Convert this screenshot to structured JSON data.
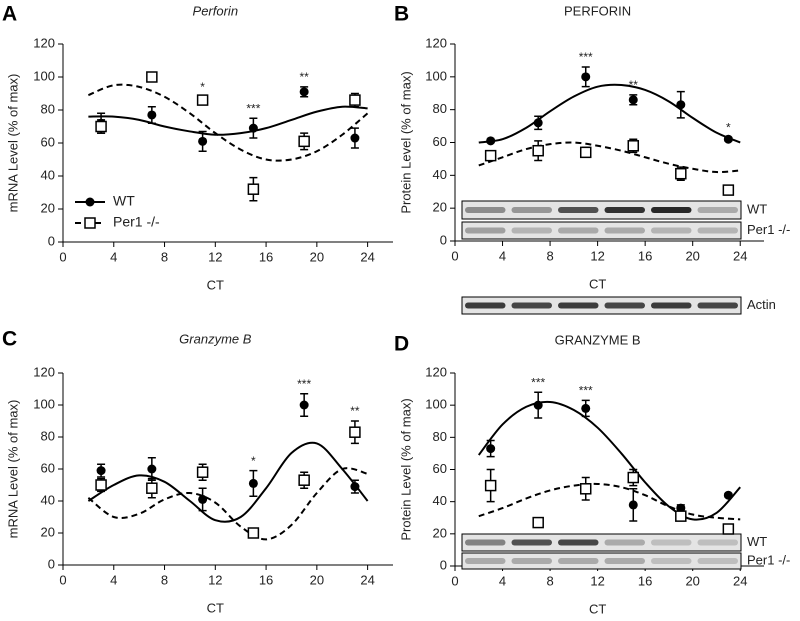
{
  "chart_data": [
    {
      "panel": "A",
      "type": "scatter",
      "title": "Perforin",
      "title_italic": true,
      "ylabel": "mRNA Level (% of max)",
      "xlabel": "CT",
      "x": [
        3,
        7,
        11,
        15,
        19,
        23
      ],
      "xlim": [
        0,
        26
      ],
      "xticks": [
        0,
        4,
        8,
        12,
        16,
        20,
        24
      ],
      "ylim": [
        0,
        120
      ],
      "yticks": [
        0,
        20,
        40,
        60,
        80,
        100,
        120
      ],
      "fit_x": [
        2,
        4,
        6,
        8,
        10,
        12,
        14,
        16,
        18,
        20,
        22,
        24
      ],
      "legend": "lower left",
      "series": [
        {
          "name": "WT",
          "color": "#000000",
          "marker": "circle",
          "line_style": "solid",
          "values": [
            72,
            77,
            61,
            69,
            91,
            63
          ],
          "errors": [
            6,
            5,
            6,
            6,
            3,
            6
          ],
          "fit_values": [
            76,
            76,
            74,
            70,
            67,
            65,
            66,
            69,
            74,
            79,
            82,
            81
          ]
        },
        {
          "name": "Per1 -/-",
          "color": "#000000",
          "marker": "square",
          "line_style": "dashed",
          "values": [
            70,
            100,
            86,
            32,
            61,
            86
          ],
          "errors": [
            4,
            1,
            2,
            7,
            5,
            4
          ],
          "fit_values": [
            89,
            95,
            94,
            88,
            78,
            66,
            56,
            50,
            50,
            55,
            65,
            78
          ]
        }
      ],
      "annotations": [
        {
          "x": 11,
          "text": "*"
        },
        {
          "x": 15,
          "text": "***"
        },
        {
          "x": 19,
          "text": "**"
        }
      ]
    },
    {
      "panel": "B",
      "type": "scatter",
      "title": "PERFORIN",
      "title_italic": false,
      "ylabel": "Protein Level (% of max)",
      "xlabel": "CT",
      "x": [
        3,
        7,
        11,
        15,
        19,
        23
      ],
      "xlim": [
        0,
        26
      ],
      "xticks": [
        0,
        4,
        8,
        12,
        16,
        20,
        24
      ],
      "ylim": [
        0,
        120
      ],
      "yticks": [
        0,
        20,
        40,
        60,
        80,
        100,
        120
      ],
      "fit_x": [
        2,
        4,
        6,
        8,
        10,
        12,
        14,
        16,
        18,
        20,
        22,
        24
      ],
      "blot_labels": [
        "WT",
        "Per1 -/-"
      ],
      "loading_control": "Actin",
      "series": [
        {
          "color": "#000000",
          "marker": "circle",
          "line_style": "solid",
          "values": [
            61,
            72,
            100,
            86,
            83,
            62
          ],
          "errors": [
            1,
            4,
            6,
            3,
            8,
            1
          ],
          "fit_values": [
            60,
            62,
            69,
            79,
            88,
            94,
            95,
            92,
            85,
            75,
            66,
            60
          ]
        },
        {
          "color": "#000000",
          "marker": "square",
          "line_style": "dashed",
          "values": [
            52,
            55,
            54,
            58,
            41,
            31
          ],
          "errors": [
            2,
            6,
            3,
            4,
            4,
            2
          ],
          "fit_values": [
            46,
            51,
            56,
            59,
            60,
            58,
            55,
            51,
            47,
            44,
            42,
            43
          ]
        }
      ],
      "annotations": [
        {
          "x": 11,
          "text": "***"
        },
        {
          "x": 15,
          "text": "**"
        },
        {
          "x": 23,
          "text": "*"
        }
      ]
    },
    {
      "panel": "C",
      "type": "scatter",
      "title": "Granzyme B",
      "title_italic": true,
      "ylabel": "mRNA Level (% of max)",
      "xlabel": "CT",
      "x": [
        3,
        7,
        11,
        15,
        19,
        23
      ],
      "xlim": [
        0,
        26
      ],
      "xticks": [
        0,
        4,
        8,
        12,
        16,
        20,
        24
      ],
      "ylim": [
        0,
        120
      ],
      "yticks": [
        0,
        20,
        40,
        60,
        80,
        100,
        120
      ],
      "fit_x": [
        2,
        4,
        6,
        8,
        10,
        12,
        14,
        16,
        18,
        20,
        22,
        24
      ],
      "series": [
        {
          "color": "#000000",
          "marker": "circle",
          "line_style": "solid",
          "values": [
            59,
            60,
            41,
            51,
            100,
            49
          ],
          "errors": [
            4,
            7,
            7,
            8,
            7,
            4
          ],
          "fit_values": [
            40,
            50,
            56,
            52,
            40,
            28,
            30,
            48,
            70,
            76,
            60,
            40
          ]
        },
        {
          "color": "#000000",
          "marker": "square",
          "line_style": "dashed",
          "values": [
            50,
            48,
            58,
            20,
            53,
            83
          ],
          "errors": [
            4,
            6,
            5,
            2,
            5,
            7
          ],
          "fit_values": [
            42,
            30,
            32,
            41,
            45,
            39,
            24,
            16,
            25,
            45,
            60,
            57
          ]
        }
      ],
      "annotations": [
        {
          "x": 15,
          "text": "*"
        },
        {
          "x": 19,
          "text": "***"
        },
        {
          "x": 23,
          "text": "**"
        }
      ]
    },
    {
      "panel": "D",
      "type": "scatter",
      "title": "GRANZYME B",
      "title_italic": false,
      "ylabel": "Protein Level (% of max)",
      "xlabel": "CT",
      "x": [
        3,
        7,
        11,
        15,
        19,
        23
      ],
      "xlim": [
        0,
        26
      ],
      "xticks": [
        0,
        4,
        8,
        12,
        16,
        20,
        24
      ],
      "ylim": [
        0,
        120
      ],
      "yticks": [
        0,
        20,
        40,
        60,
        80,
        100,
        120
      ],
      "fit_x": [
        2,
        4,
        6,
        8,
        10,
        12,
        14,
        16,
        18,
        20,
        22,
        24
      ],
      "blot_labels": [
        "WT",
        "Per1 -/-"
      ],
      "series": [
        {
          "color": "#000000",
          "marker": "circle",
          "line_style": "solid",
          "values": [
            73,
            100,
            98,
            38,
            36,
            44
          ],
          "errors": [
            5,
            8,
            5,
            10,
            2,
            1
          ],
          "fit_values": [
            69,
            88,
            99,
            102,
            97,
            86,
            70,
            52,
            37,
            29,
            33,
            49
          ]
        },
        {
          "color": "#000000",
          "marker": "square",
          "line_style": "dashed",
          "values": [
            50,
            27,
            48,
            55,
            31,
            23
          ],
          "errors": [
            10,
            2,
            7,
            5,
            2,
            2
          ],
          "fit_values": [
            31,
            36,
            42,
            47,
            50,
            51,
            49,
            44,
            37,
            32,
            30,
            29
          ]
        }
      ],
      "annotations": [
        {
          "x": 7,
          "text": "***"
        },
        {
          "x": 11,
          "text": "***"
        }
      ]
    }
  ]
}
